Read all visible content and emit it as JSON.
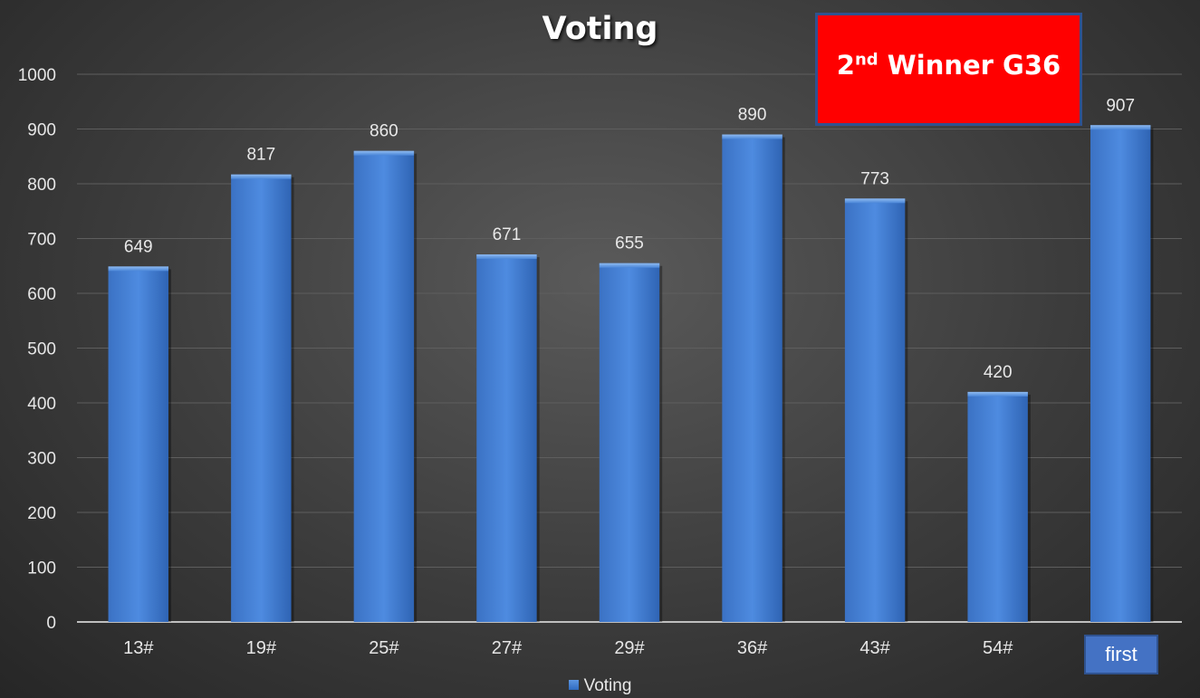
{
  "chart_data": {
    "type": "bar",
    "title": "Voting",
    "categories": [
      "13#",
      "19#",
      "25#",
      "27#",
      "29#",
      "36#",
      "43#",
      "54#",
      ""
    ],
    "series": [
      {
        "name": "Voting",
        "values": [
          649,
          817,
          860,
          671,
          655,
          890,
          773,
          420,
          907
        ]
      }
    ],
    "ylim": [
      0,
      1000
    ],
    "yticks": [
      0,
      100,
      200,
      300,
      400,
      500,
      600,
      700,
      800,
      900,
      1000
    ],
    "grid": true,
    "legend_position": "bottom",
    "bar_color": "#4a86d8",
    "annotations": {
      "winner_main": "2",
      "winner_sup": "nd",
      "winner_rest": " Winner G36",
      "winner_box_color": "#ff0000",
      "first_label": "first",
      "first_box_color": "#4472c4"
    }
  }
}
